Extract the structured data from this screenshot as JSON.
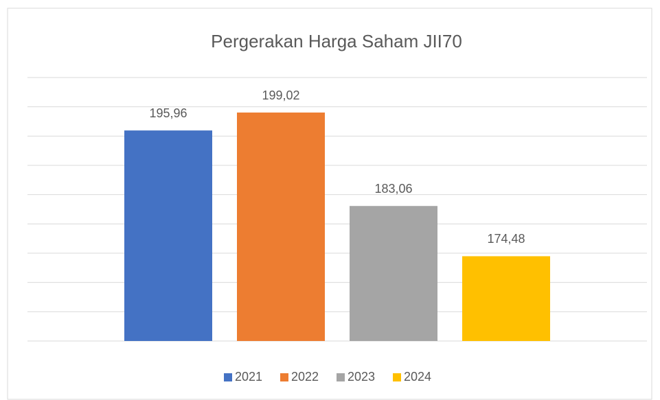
{
  "chart_data": {
    "type": "bar",
    "title": "Pergerakan Harga Saham JII70",
    "series": [
      {
        "name": "2021",
        "color": "#4472c4",
        "values": [
          195.96
        ],
        "value_labels": [
          "195,96"
        ]
      },
      {
        "name": "2022",
        "color": "#ed7d31",
        "values": [
          199.02
        ],
        "value_labels": [
          "199,02"
        ]
      },
      {
        "name": "2023",
        "color": "#a5a5a5",
        "values": [
          183.06
        ],
        "value_labels": [
          "183,06"
        ]
      },
      {
        "name": "2024",
        "color": "#ffc000",
        "values": [
          174.48
        ],
        "value_labels": [
          "174,48"
        ]
      }
    ],
    "ylim": [
      160,
      205
    ],
    "yticks": [
      160,
      165,
      170,
      175,
      180,
      185,
      190,
      195,
      200,
      205
    ],
    "grid": true,
    "legend": "bottom"
  }
}
